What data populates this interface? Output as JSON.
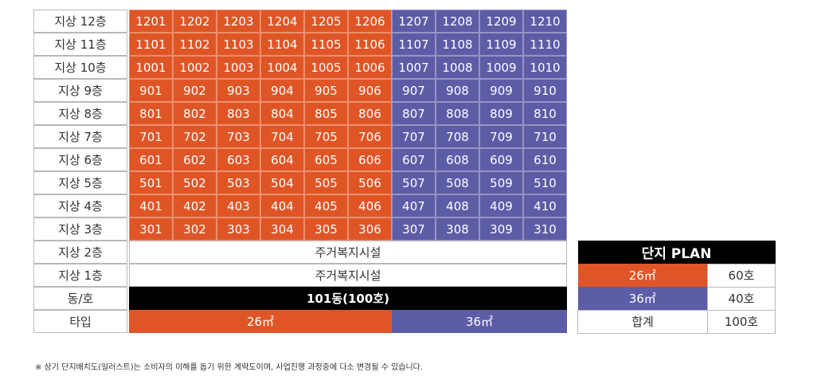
{
  "floors": [
    {
      "label": "지상 12층",
      "units": [
        "1201",
        "1202",
        "1203",
        "1204",
        "1205",
        "1206",
        "1207",
        "1208",
        "1209",
        "1210"
      ]
    },
    {
      "label": "지상 11층",
      "units": [
        "1101",
        "1102",
        "1103",
        "1104",
        "1105",
        "1106",
        "1107",
        "1108",
        "1109",
        "1110"
      ]
    },
    {
      "label": "지상 10층",
      "units": [
        "1001",
        "1002",
        "1003",
        "1004",
        "1005",
        "1006",
        "1007",
        "1008",
        "1009",
        "1010"
      ]
    },
    {
      "label": "지상 9층",
      "units": [
        "901",
        "902",
        "903",
        "904",
        "905",
        "906",
        "907",
        "908",
        "909",
        "910"
      ]
    },
    {
      "label": "지상 8층",
      "units": [
        "801",
        "802",
        "803",
        "804",
        "805",
        "806",
        "807",
        "808",
        "809",
        "810"
      ]
    },
    {
      "label": "지상 7층",
      "units": [
        "701",
        "702",
        "703",
        "704",
        "705",
        "706",
        "707",
        "708",
        "709",
        "710"
      ]
    },
    {
      "label": "지상 6층",
      "units": [
        "601",
        "602",
        "603",
        "604",
        "605",
        "606",
        "607",
        "608",
        "609",
        "610"
      ]
    },
    {
      "label": "지상 5층",
      "units": [
        "501",
        "502",
        "503",
        "504",
        "505",
        "506",
        "507",
        "508",
        "509",
        "510"
      ]
    },
    {
      "label": "지상 4층",
      "units": [
        "401",
        "402",
        "403",
        "404",
        "405",
        "406",
        "407",
        "408",
        "409",
        "410"
      ]
    },
    {
      "label": "지상 3층",
      "units": [
        "301",
        "302",
        "303",
        "304",
        "305",
        "306",
        "307",
        "308",
        "309",
        "310"
      ]
    }
  ],
  "facility_rows": [
    {
      "label": "지상 2층",
      "text": "주거복지시설"
    },
    {
      "label": "지상 1층",
      "text": "주거복지시설"
    }
  ],
  "building_row": {
    "label": "동/호",
    "text": "101동(100호)"
  },
  "type_row": {
    "label": "타입",
    "type_a": "26㎡",
    "type_b": "36㎡"
  },
  "plan": {
    "title": "단지 PLAN",
    "rows": [
      {
        "type": "26㎡",
        "count": "60호"
      },
      {
        "type": "36㎡",
        "count": "40호"
      }
    ],
    "total_label": "합계",
    "total_count": "100호"
  },
  "footnote": "※ 상기 단지배치도(일러스트)는 소비자의 이해를 돕기 위한 계략도이며, 사업진행 과정중에 다소 변경될 수 있습니다.",
  "colors": {
    "type_26": "#e05526",
    "type_36": "#5d5ca6",
    "header_black": "#000000"
  }
}
